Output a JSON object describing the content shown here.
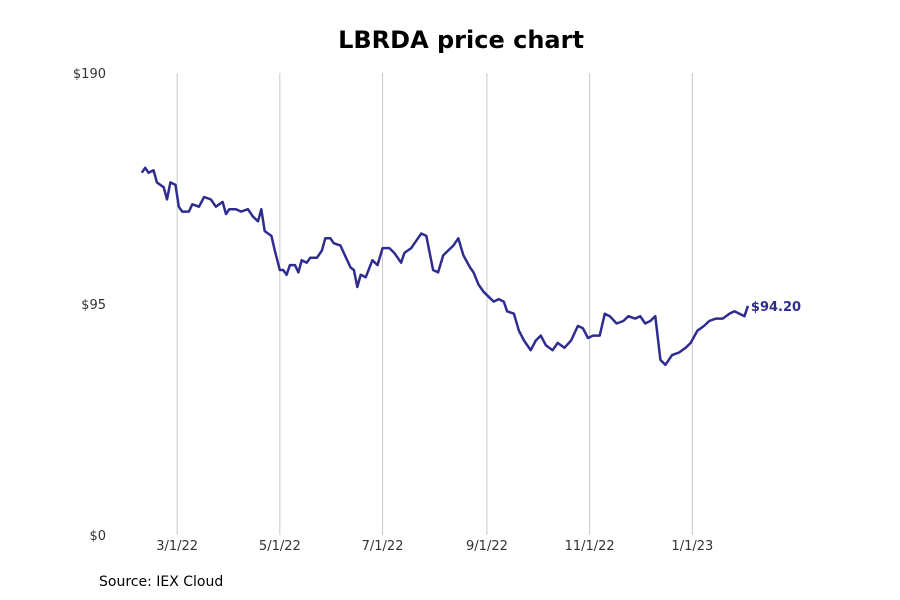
{
  "footer": {
    "source": "Source: IEX Cloud"
  },
  "colors": {
    "series": "#2e2d8f",
    "grid": "#c8c8c8"
  },
  "chart_data": {
    "type": "line",
    "title": "LBRDA price chart",
    "xlabel": "",
    "ylabel": "",
    "ylim": [
      0,
      190
    ],
    "yticks": [
      0,
      95,
      190
    ],
    "ytick_labels": [
      "$0",
      "$95",
      "$190"
    ],
    "xticks": [
      "2022-03-01",
      "2022-05-01",
      "2022-07-01",
      "2022-09-01",
      "2022-11-01",
      "2023-01-01"
    ],
    "xtick_labels": [
      "3/1/22",
      "5/1/22",
      "7/1/22",
      "9/1/22",
      "11/1/22",
      "1/1/23"
    ],
    "grid": "vertical",
    "last_value_label": "$94.20",
    "series": [
      {
        "points": [
          [
            "2022-02-08",
            149
          ],
          [
            "2022-02-10",
            151
          ],
          [
            "2022-02-12",
            149
          ],
          [
            "2022-02-15",
            150
          ],
          [
            "2022-02-17",
            145
          ],
          [
            "2022-02-21",
            143
          ],
          [
            "2022-02-23",
            138
          ],
          [
            "2022-02-25",
            145
          ],
          [
            "2022-02-28",
            144
          ],
          [
            "2022-03-02",
            135
          ],
          [
            "2022-03-04",
            133
          ],
          [
            "2022-03-08",
            133
          ],
          [
            "2022-03-10",
            136
          ],
          [
            "2022-03-14",
            135
          ],
          [
            "2022-03-17",
            139
          ],
          [
            "2022-03-21",
            138
          ],
          [
            "2022-03-24",
            135
          ],
          [
            "2022-03-28",
            137
          ],
          [
            "2022-03-30",
            132
          ],
          [
            "2022-04-01",
            134
          ],
          [
            "2022-04-05",
            134
          ],
          [
            "2022-04-08",
            133
          ],
          [
            "2022-04-12",
            134
          ],
          [
            "2022-04-15",
            131
          ],
          [
            "2022-04-18",
            129
          ],
          [
            "2022-04-20",
            134
          ],
          [
            "2022-04-22",
            125
          ],
          [
            "2022-04-26",
            123
          ],
          [
            "2022-04-28",
            117
          ],
          [
            "2022-05-01",
            109
          ],
          [
            "2022-05-03",
            109
          ],
          [
            "2022-05-05",
            107
          ],
          [
            "2022-05-07",
            111
          ],
          [
            "2022-05-10",
            111
          ],
          [
            "2022-05-12",
            108
          ],
          [
            "2022-05-14",
            113
          ],
          [
            "2022-05-17",
            112
          ],
          [
            "2022-05-19",
            114
          ],
          [
            "2022-05-23",
            114
          ],
          [
            "2022-05-26",
            117
          ],
          [
            "2022-05-28",
            122
          ],
          [
            "2022-05-31",
            122
          ],
          [
            "2022-06-02",
            120
          ],
          [
            "2022-06-06",
            119
          ],
          [
            "2022-06-08",
            116
          ],
          [
            "2022-06-12",
            110
          ],
          [
            "2022-06-14",
            109
          ],
          [
            "2022-06-16",
            102
          ],
          [
            "2022-06-18",
            107
          ],
          [
            "2022-06-21",
            106
          ],
          [
            "2022-06-25",
            113
          ],
          [
            "2022-06-28",
            111
          ],
          [
            "2022-07-01",
            118
          ],
          [
            "2022-07-05",
            118
          ],
          [
            "2022-07-08",
            116
          ],
          [
            "2022-07-12",
            112
          ],
          [
            "2022-07-14",
            116
          ],
          [
            "2022-07-18",
            118
          ],
          [
            "2022-07-21",
            121
          ],
          [
            "2022-07-24",
            124
          ],
          [
            "2022-07-27",
            123
          ],
          [
            "2022-07-31",
            109
          ],
          [
            "2022-08-03",
            108
          ],
          [
            "2022-08-06",
            115
          ],
          [
            "2022-08-09",
            117
          ],
          [
            "2022-08-12",
            119
          ],
          [
            "2022-08-15",
            122
          ],
          [
            "2022-08-18",
            115
          ],
          [
            "2022-08-22",
            110
          ],
          [
            "2022-08-24",
            108
          ],
          [
            "2022-08-27",
            103
          ],
          [
            "2022-08-30",
            100
          ],
          [
            "2022-09-02",
            98
          ],
          [
            "2022-09-05",
            96
          ],
          [
            "2022-09-08",
            97
          ],
          [
            "2022-09-11",
            96
          ],
          [
            "2022-09-13",
            92
          ],
          [
            "2022-09-17",
            91
          ],
          [
            "2022-09-20",
            84
          ],
          [
            "2022-09-23",
            80
          ],
          [
            "2022-09-27",
            76
          ],
          [
            "2022-09-30",
            80
          ],
          [
            "2022-10-03",
            82
          ],
          [
            "2022-10-06",
            78
          ],
          [
            "2022-10-10",
            76
          ],
          [
            "2022-10-13",
            79
          ],
          [
            "2022-10-17",
            77
          ],
          [
            "2022-10-21",
            80
          ],
          [
            "2022-10-25",
            86
          ],
          [
            "2022-10-28",
            85
          ],
          [
            "2022-10-31",
            81
          ],
          [
            "2022-11-03",
            82
          ],
          [
            "2022-11-07",
            82
          ],
          [
            "2022-11-10",
            91
          ],
          [
            "2022-11-13",
            90
          ],
          [
            "2022-11-17",
            87
          ],
          [
            "2022-11-21",
            88
          ],
          [
            "2022-11-24",
            90
          ],
          [
            "2022-11-28",
            89
          ],
          [
            "2022-12-01",
            90
          ],
          [
            "2022-12-04",
            87
          ],
          [
            "2022-12-07",
            88
          ],
          [
            "2022-12-10",
            90
          ],
          [
            "2022-12-13",
            72
          ],
          [
            "2022-12-16",
            70
          ],
          [
            "2022-12-20",
            74
          ],
          [
            "2022-12-24",
            75
          ],
          [
            "2022-12-28",
            77
          ],
          [
            "2022-12-31",
            79
          ],
          [
            "2023-01-04",
            84
          ],
          [
            "2023-01-08",
            86
          ],
          [
            "2023-01-11",
            88
          ],
          [
            "2023-01-15",
            89
          ],
          [
            "2023-01-19",
            89
          ],
          [
            "2023-01-23",
            91
          ],
          [
            "2023-01-26",
            92
          ],
          [
            "2023-01-29",
            91
          ],
          [
            "2023-02-01",
            90
          ],
          [
            "2023-02-03",
            94.2
          ]
        ]
      }
    ]
  }
}
